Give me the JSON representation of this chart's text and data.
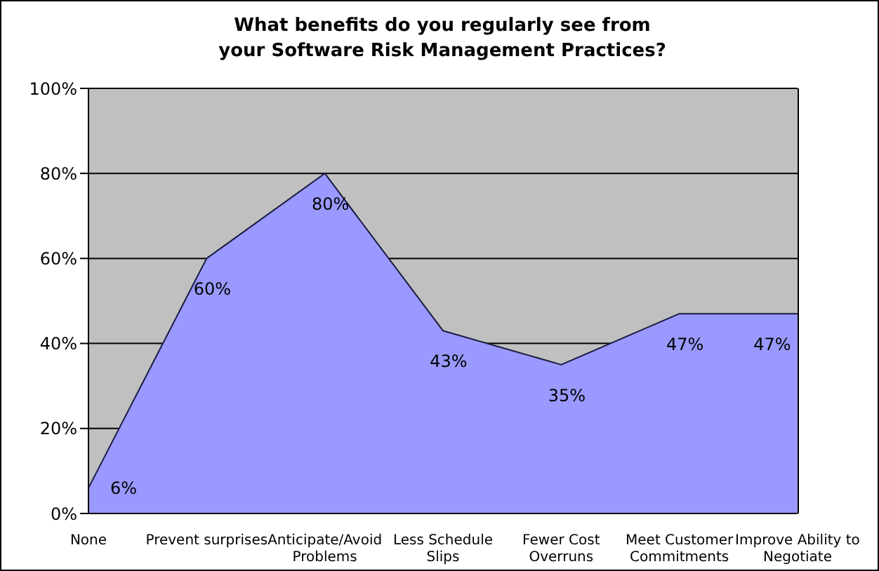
{
  "chart_data": {
    "type": "area",
    "title": "What benefits do you regularly see from your Software Risk Management Practices?",
    "categories": [
      "None",
      "Prevent surprises",
      "Anticipate/Avoid Problems",
      "Less Schedule Slips",
      "Fewer Cost Overruns",
      "Meet Customer Commitments",
      "Improve Ability to Negotiate"
    ],
    "values": [
      6,
      60,
      80,
      43,
      35,
      47,
      47
    ],
    "value_labels": [
      "6%",
      "60%",
      "80%",
      "43%",
      "35%",
      "47%",
      "47%"
    ],
    "color": "#9999ff",
    "ylim": [
      0,
      100
    ],
    "yticks": [
      {
        "value": 0,
        "label": "0%"
      },
      {
        "value": 20,
        "label": "20%"
      },
      {
        "value": 40,
        "label": "40%"
      },
      {
        "value": 60,
        "label": "60%"
      },
      {
        "value": 80,
        "label": "80%"
      },
      {
        "value": 100,
        "label": "100%"
      }
    ],
    "grid": "y"
  }
}
